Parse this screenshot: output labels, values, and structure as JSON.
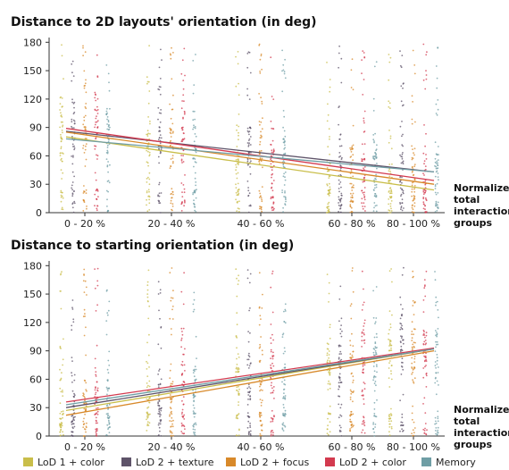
{
  "chart_data": [
    {
      "type": "scatter",
      "title": "Distance to 2D layouts' orientation (in deg)",
      "xlabel": "Normalized total interactions groups",
      "xlabel_lines": [
        "Normalized",
        "total",
        "interactions",
        "groups"
      ],
      "ylabel": "",
      "categories": [
        "0 - 20 %",
        "20 - 40 %",
        "40 - 60 %",
        "60 - 80 %",
        "80 - 100 %"
      ],
      "yticks": [
        "0",
        "30",
        "60",
        "90",
        "120",
        "150",
        "180"
      ],
      "ylim": [
        0,
        185
      ],
      "grid": false,
      "series": [
        {
          "name": "LoD 1 + color",
          "color": "#c9be4a",
          "trend": [
            80,
            24
          ]
        },
        {
          "name": "LoD 2 + texture",
          "color": "#5e5369",
          "trend": [
            86,
            43
          ]
        },
        {
          "name": "LoD 2 + focus",
          "color": "#d8892a",
          "trend": [
            85,
            30
          ]
        },
        {
          "name": "LoD 2 + color",
          "color": "#d33a4f",
          "trend": [
            89,
            34
          ]
        },
        {
          "name": "Memory",
          "color": "#6f9ea5",
          "trend": [
            78,
            43
          ]
        }
      ]
    },
    {
      "type": "scatter",
      "title": "Distance to starting orientation (in deg)",
      "xlabel": "Normalized total interactions groups",
      "xlabel_lines": [
        "Normalized",
        "total",
        "interactions",
        "groups"
      ],
      "ylabel": "",
      "categories": [
        "0 - 20 %",
        "20 - 40 %",
        "40 - 60 %",
        "60 - 80 %",
        "80 - 100 %"
      ],
      "yticks": [
        "0",
        "30",
        "60",
        "90",
        "120",
        "150",
        "180"
      ],
      "ylim": [
        0,
        185
      ],
      "grid": false,
      "series": [
        {
          "name": "LoD 1 + color",
          "color": "#c9be4a",
          "trend": [
            27,
            92
          ]
        },
        {
          "name": "LoD 2 + texture",
          "color": "#5e5369",
          "trend": [
            30,
            92
          ]
        },
        {
          "name": "LoD 2 + focus",
          "color": "#d8892a",
          "trend": [
            22,
            90
          ]
        },
        {
          "name": "LoD 2 + color",
          "color": "#d33a4f",
          "trend": [
            36,
            93
          ]
        },
        {
          "name": "Memory",
          "color": "#6f9ea5",
          "trend": [
            33,
            92
          ]
        }
      ]
    }
  ],
  "legend": [
    {
      "label": "LoD 1 + color",
      "color": "#c9be4a"
    },
    {
      "label": "LoD 2 + texture",
      "color": "#5e5369"
    },
    {
      "label": "LoD 2 + focus",
      "color": "#d8892a"
    },
    {
      "label": "LoD 2 + color",
      "color": "#d33a4f"
    },
    {
      "label": "Memory",
      "color": "#6f9ea5"
    }
  ]
}
